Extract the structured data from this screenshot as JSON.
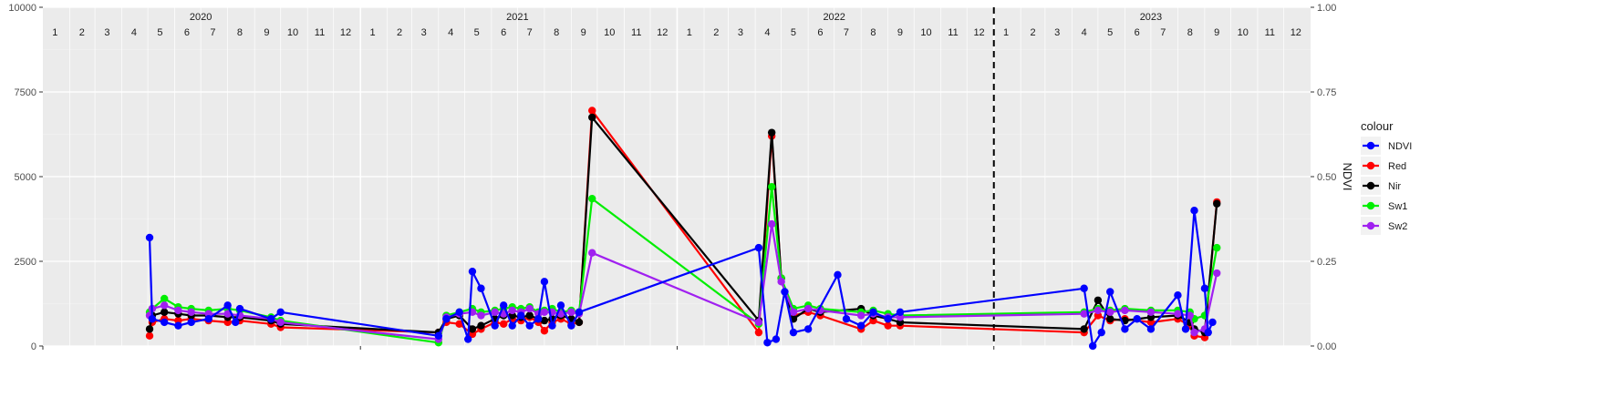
{
  "chart_data": {
    "type": "line",
    "title": "",
    "xlabel": "",
    "ylabel": "",
    "y2label": "NDVI",
    "ylim": [
      0,
      10000
    ],
    "y2lim": [
      0,
      1
    ],
    "xlim": [
      "2020-01-01",
      "2024-01-01"
    ],
    "grid": true,
    "legend_position": "right",
    "legend_title": "colour",
    "y_ticks": [
      "0",
      "2500",
      "5000",
      "7500",
      "10000"
    ],
    "y2_ticks": [
      "0.00",
      "0.25",
      "0.50",
      "0.75",
      "1.00"
    ],
    "years": [
      "2020",
      "2021",
      "2022",
      "2023"
    ],
    "months": [
      "1",
      "2",
      "3",
      "4",
      "5",
      "6",
      "7",
      "8",
      "9",
      "10",
      "11",
      "12"
    ],
    "vline_date": "2023-01-01",
    "series": [
      {
        "name": "Red",
        "color": "#ff0000",
        "axis": "left",
        "points": [
          [
            "2020-05-03",
            300
          ],
          [
            "2020-05-06",
            700
          ],
          [
            "2020-05-20",
            800
          ],
          [
            "2020-06-05",
            750
          ],
          [
            "2020-06-20",
            800
          ],
          [
            "2020-07-10",
            750
          ],
          [
            "2020-08-01",
            700
          ],
          [
            "2020-08-15",
            750
          ],
          [
            "2020-09-20",
            650
          ],
          [
            "2020-10-01",
            550
          ],
          [
            "2021-04-01",
            400
          ],
          [
            "2021-04-10",
            700
          ],
          [
            "2021-04-25",
            650
          ],
          [
            "2021-05-10",
            350
          ],
          [
            "2021-05-20",
            500
          ],
          [
            "2021-06-05",
            700
          ],
          [
            "2021-06-15",
            650
          ],
          [
            "2021-06-25",
            800
          ],
          [
            "2021-07-05",
            750
          ],
          [
            "2021-07-15",
            850
          ],
          [
            "2021-07-25",
            700
          ],
          [
            "2021-08-01",
            450
          ],
          [
            "2021-08-10",
            700
          ],
          [
            "2021-08-20",
            800
          ],
          [
            "2021-09-01",
            650
          ],
          [
            "2021-09-10",
            700
          ],
          [
            "2021-09-25",
            6950
          ],
          [
            "2022-04-05",
            400
          ],
          [
            "2022-04-20",
            6200
          ],
          [
            "2022-05-01",
            2000
          ],
          [
            "2022-05-15",
            900
          ],
          [
            "2022-06-01",
            1000
          ],
          [
            "2022-06-15",
            900
          ],
          [
            "2022-08-01",
            500
          ],
          [
            "2022-08-15",
            750
          ],
          [
            "2022-09-01",
            600
          ],
          [
            "2022-09-15",
            600
          ],
          [
            "2023-04-15",
            400
          ],
          [
            "2023-05-01",
            900
          ],
          [
            "2023-05-15",
            750
          ],
          [
            "2023-06-01",
            800
          ],
          [
            "2023-07-01",
            700
          ],
          [
            "2023-08-01",
            800
          ],
          [
            "2023-08-15",
            600
          ],
          [
            "2023-08-20",
            300
          ],
          [
            "2023-09-01",
            250
          ],
          [
            "2023-09-15",
            4250
          ]
        ]
      },
      {
        "name": "Nir",
        "color": "#000000",
        "axis": "left",
        "points": [
          [
            "2020-05-03",
            500
          ],
          [
            "2020-05-06",
            900
          ],
          [
            "2020-05-20",
            1000
          ],
          [
            "2020-06-05",
            950
          ],
          [
            "2020-06-20",
            900
          ],
          [
            "2020-07-10",
            900
          ],
          [
            "2020-08-01",
            850
          ],
          [
            "2020-08-15",
            850
          ],
          [
            "2020-09-20",
            750
          ],
          [
            "2020-10-01",
            650
          ],
          [
            "2021-04-01",
            400
          ],
          [
            "2021-04-10",
            800
          ],
          [
            "2021-04-25",
            900
          ],
          [
            "2021-05-10",
            500
          ],
          [
            "2021-05-20",
            600
          ],
          [
            "2021-06-05",
            800
          ],
          [
            "2021-06-15",
            900
          ],
          [
            "2021-06-25",
            900
          ],
          [
            "2021-07-05",
            850
          ],
          [
            "2021-07-15",
            900
          ],
          [
            "2021-07-25",
            800
          ],
          [
            "2021-08-01",
            750
          ],
          [
            "2021-08-10",
            800
          ],
          [
            "2021-08-20",
            900
          ],
          [
            "2021-09-01",
            800
          ],
          [
            "2021-09-10",
            700
          ],
          [
            "2021-09-25",
            6750
          ],
          [
            "2022-04-05",
            750
          ],
          [
            "2022-04-20",
            6300
          ],
          [
            "2022-05-01",
            2000
          ],
          [
            "2022-05-15",
            800
          ],
          [
            "2022-06-01",
            1100
          ],
          [
            "2022-06-15",
            1000
          ],
          [
            "2022-08-01",
            1100
          ],
          [
            "2022-08-15",
            900
          ],
          [
            "2022-09-01",
            800
          ],
          [
            "2022-09-15",
            700
          ],
          [
            "2023-04-15",
            500
          ],
          [
            "2023-05-01",
            1350
          ],
          [
            "2023-05-15",
            800
          ],
          [
            "2023-06-01",
            750
          ],
          [
            "2023-07-01",
            850
          ],
          [
            "2023-08-01",
            900
          ],
          [
            "2023-08-15",
            700
          ],
          [
            "2023-08-20",
            500
          ],
          [
            "2023-09-01",
            400
          ],
          [
            "2023-09-15",
            4200
          ]
        ]
      },
      {
        "name": "Sw1",
        "color": "#00ee00",
        "axis": "left",
        "points": [
          [
            "2020-05-03",
            1000
          ],
          [
            "2020-05-06",
            1100
          ],
          [
            "2020-05-20",
            1400
          ],
          [
            "2020-06-05",
            1150
          ],
          [
            "2020-06-20",
            1100
          ],
          [
            "2020-07-10",
            1050
          ],
          [
            "2020-08-01",
            1100
          ],
          [
            "2020-08-15",
            1050
          ],
          [
            "2020-09-20",
            850
          ],
          [
            "2020-10-01",
            750
          ],
          [
            "2021-04-01",
            100
          ],
          [
            "2021-04-10",
            900
          ],
          [
            "2021-04-25",
            1000
          ],
          [
            "2021-05-10",
            1100
          ],
          [
            "2021-05-20",
            1000
          ],
          [
            "2021-06-05",
            1050
          ],
          [
            "2021-06-15",
            1100
          ],
          [
            "2021-06-25",
            1150
          ],
          [
            "2021-07-05",
            1100
          ],
          [
            "2021-07-15",
            1150
          ],
          [
            "2021-07-25",
            1000
          ],
          [
            "2021-08-01",
            1050
          ],
          [
            "2021-08-10",
            1100
          ],
          [
            "2021-08-20",
            1000
          ],
          [
            "2021-09-01",
            1050
          ],
          [
            "2021-09-10",
            1000
          ],
          [
            "2021-09-25",
            4350
          ],
          [
            "2022-04-05",
            650
          ],
          [
            "2022-04-20",
            4700
          ],
          [
            "2022-05-01",
            2000
          ],
          [
            "2022-05-15",
            1100
          ],
          [
            "2022-06-01",
            1200
          ],
          [
            "2022-06-15",
            1100
          ],
          [
            "2022-08-01",
            1000
          ],
          [
            "2022-08-15",
            1050
          ],
          [
            "2022-09-01",
            950
          ],
          [
            "2022-09-15",
            900
          ],
          [
            "2023-04-15",
            1000
          ],
          [
            "2023-05-01",
            1100
          ],
          [
            "2023-05-15",
            1050
          ],
          [
            "2023-06-01",
            1100
          ],
          [
            "2023-07-01",
            1050
          ],
          [
            "2023-08-01",
            1050
          ],
          [
            "2023-08-15",
            1000
          ],
          [
            "2023-08-20",
            800
          ],
          [
            "2023-09-01",
            900
          ],
          [
            "2023-09-15",
            2900
          ]
        ]
      },
      {
        "name": "Sw2",
        "color": "#a020f0",
        "axis": "left",
        "points": [
          [
            "2020-05-03",
            900
          ],
          [
            "2020-05-06",
            1100
          ],
          [
            "2020-05-20",
            1200
          ],
          [
            "2020-06-05",
            1050
          ],
          [
            "2020-06-20",
            1000
          ],
          [
            "2020-07-10",
            950
          ],
          [
            "2020-08-01",
            950
          ],
          [
            "2020-08-15",
            900
          ],
          [
            "2020-09-20",
            800
          ],
          [
            "2020-10-01",
            700
          ],
          [
            "2021-04-01",
            200
          ],
          [
            "2021-04-10",
            850
          ],
          [
            "2021-04-25",
            950
          ],
          [
            "2021-05-10",
            1000
          ],
          [
            "2021-05-20",
            900
          ],
          [
            "2021-06-05",
            1000
          ],
          [
            "2021-06-15",
            950
          ],
          [
            "2021-06-25",
            1050
          ],
          [
            "2021-07-05",
            1000
          ],
          [
            "2021-07-15",
            1100
          ],
          [
            "2021-07-25",
            950
          ],
          [
            "2021-08-01",
            1000
          ],
          [
            "2021-08-10",
            1000
          ],
          [
            "2021-08-20",
            950
          ],
          [
            "2021-09-01",
            1000
          ],
          [
            "2021-09-10",
            950
          ],
          [
            "2021-09-25",
            2750
          ],
          [
            "2022-04-05",
            700
          ],
          [
            "2022-04-20",
            3600
          ],
          [
            "2022-05-01",
            1900
          ],
          [
            "2022-05-15",
            1000
          ],
          [
            "2022-06-01",
            1100
          ],
          [
            "2022-06-15",
            1050
          ],
          [
            "2022-08-01",
            900
          ],
          [
            "2022-08-15",
            950
          ],
          [
            "2022-09-01",
            850
          ],
          [
            "2022-09-15",
            850
          ],
          [
            "2023-04-15",
            950
          ],
          [
            "2023-05-01",
            1050
          ],
          [
            "2023-05-15",
            1000
          ],
          [
            "2023-06-01",
            1050
          ],
          [
            "2023-07-01",
            1000
          ],
          [
            "2023-08-01",
            950
          ],
          [
            "2023-08-15",
            900
          ],
          [
            "2023-08-20",
            400
          ],
          [
            "2023-09-01",
            500
          ],
          [
            "2023-09-15",
            2150
          ]
        ]
      },
      {
        "name": "NDVI",
        "color": "#0000ff",
        "axis": "right",
        "points": [
          [
            "2020-05-03",
            0.32
          ],
          [
            "2020-05-06",
            0.08
          ],
          [
            "2020-05-20",
            0.07
          ],
          [
            "2020-06-05",
            0.06
          ],
          [
            "2020-06-20",
            0.07
          ],
          [
            "2020-07-10",
            0.08
          ],
          [
            "2020-08-01",
            0.12
          ],
          [
            "2020-08-10",
            0.07
          ],
          [
            "2020-08-15",
            0.11
          ],
          [
            "2020-09-20",
            0.08
          ],
          [
            "2020-10-01",
            0.1
          ],
          [
            "2021-04-01",
            0.03
          ],
          [
            "2021-04-10",
            0.08
          ],
          [
            "2021-04-25",
            0.1
          ],
          [
            "2021-05-05",
            0.02
          ],
          [
            "2021-05-10",
            0.22
          ],
          [
            "2021-05-20",
            0.17
          ],
          [
            "2021-06-05",
            0.06
          ],
          [
            "2021-06-15",
            0.12
          ],
          [
            "2021-06-25",
            0.06
          ],
          [
            "2021-07-05",
            0.09
          ],
          [
            "2021-07-15",
            0.06
          ],
          [
            "2021-07-25",
            0.08
          ],
          [
            "2021-08-01",
            0.19
          ],
          [
            "2021-08-10",
            0.06
          ],
          [
            "2021-08-20",
            0.12
          ],
          [
            "2021-09-01",
            0.06
          ],
          [
            "2021-09-10",
            0.1
          ],
          [
            "2022-04-05",
            0.29
          ],
          [
            "2022-04-15",
            0.01
          ],
          [
            "2022-04-25",
            0.02
          ],
          [
            "2022-05-05",
            0.16
          ],
          [
            "2022-05-15",
            0.04
          ],
          [
            "2022-06-01",
            0.05
          ],
          [
            "2022-07-05",
            0.21
          ],
          [
            "2022-07-15",
            0.08
          ],
          [
            "2022-08-01",
            0.06
          ],
          [
            "2022-08-15",
            0.1
          ],
          [
            "2022-09-01",
            0.08
          ],
          [
            "2022-09-15",
            0.1
          ],
          [
            "2023-04-15",
            0.17
          ],
          [
            "2023-04-25",
            0.0
          ],
          [
            "2023-05-05",
            0.04
          ],
          [
            "2023-05-15",
            0.16
          ],
          [
            "2023-06-01",
            0.05
          ],
          [
            "2023-06-15",
            0.08
          ],
          [
            "2023-07-01",
            0.05
          ],
          [
            "2023-08-01",
            0.15
          ],
          [
            "2023-08-10",
            0.05
          ],
          [
            "2023-08-20",
            0.4
          ],
          [
            "2023-09-01",
            0.17
          ],
          [
            "2023-09-05",
            0.04
          ],
          [
            "2023-09-10",
            0.07
          ]
        ]
      }
    ]
  }
}
